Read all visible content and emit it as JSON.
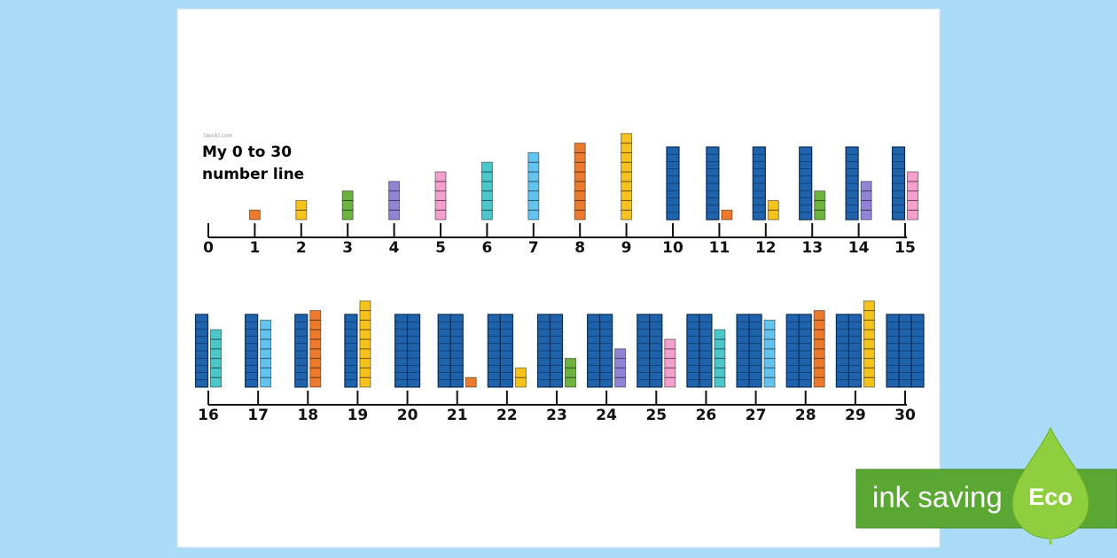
{
  "source": "twinkl.com",
  "title_lines": [
    "My 0 to 30",
    "number line"
  ],
  "number_line": {
    "numbers": [
      0,
      1,
      2,
      3,
      4,
      5,
      6,
      7,
      8,
      9,
      10,
      11,
      12,
      13,
      14,
      15,
      16,
      17,
      18,
      19,
      20,
      21,
      22,
      23,
      24,
      25,
      26,
      27,
      28,
      29,
      30
    ],
    "ten_rod_color": "#1f63ad",
    "unit_colors": [
      "#ec7a2c",
      "#f6c31c",
      "#6db33f",
      "#8f84d6",
      "#f4a0cc",
      "#4cc6c8",
      "#62c3ef",
      "#ec7a2c",
      "#f6c31c"
    ]
  },
  "badge": {
    "text": "ink saving",
    "leaf_text": "Eco"
  }
}
